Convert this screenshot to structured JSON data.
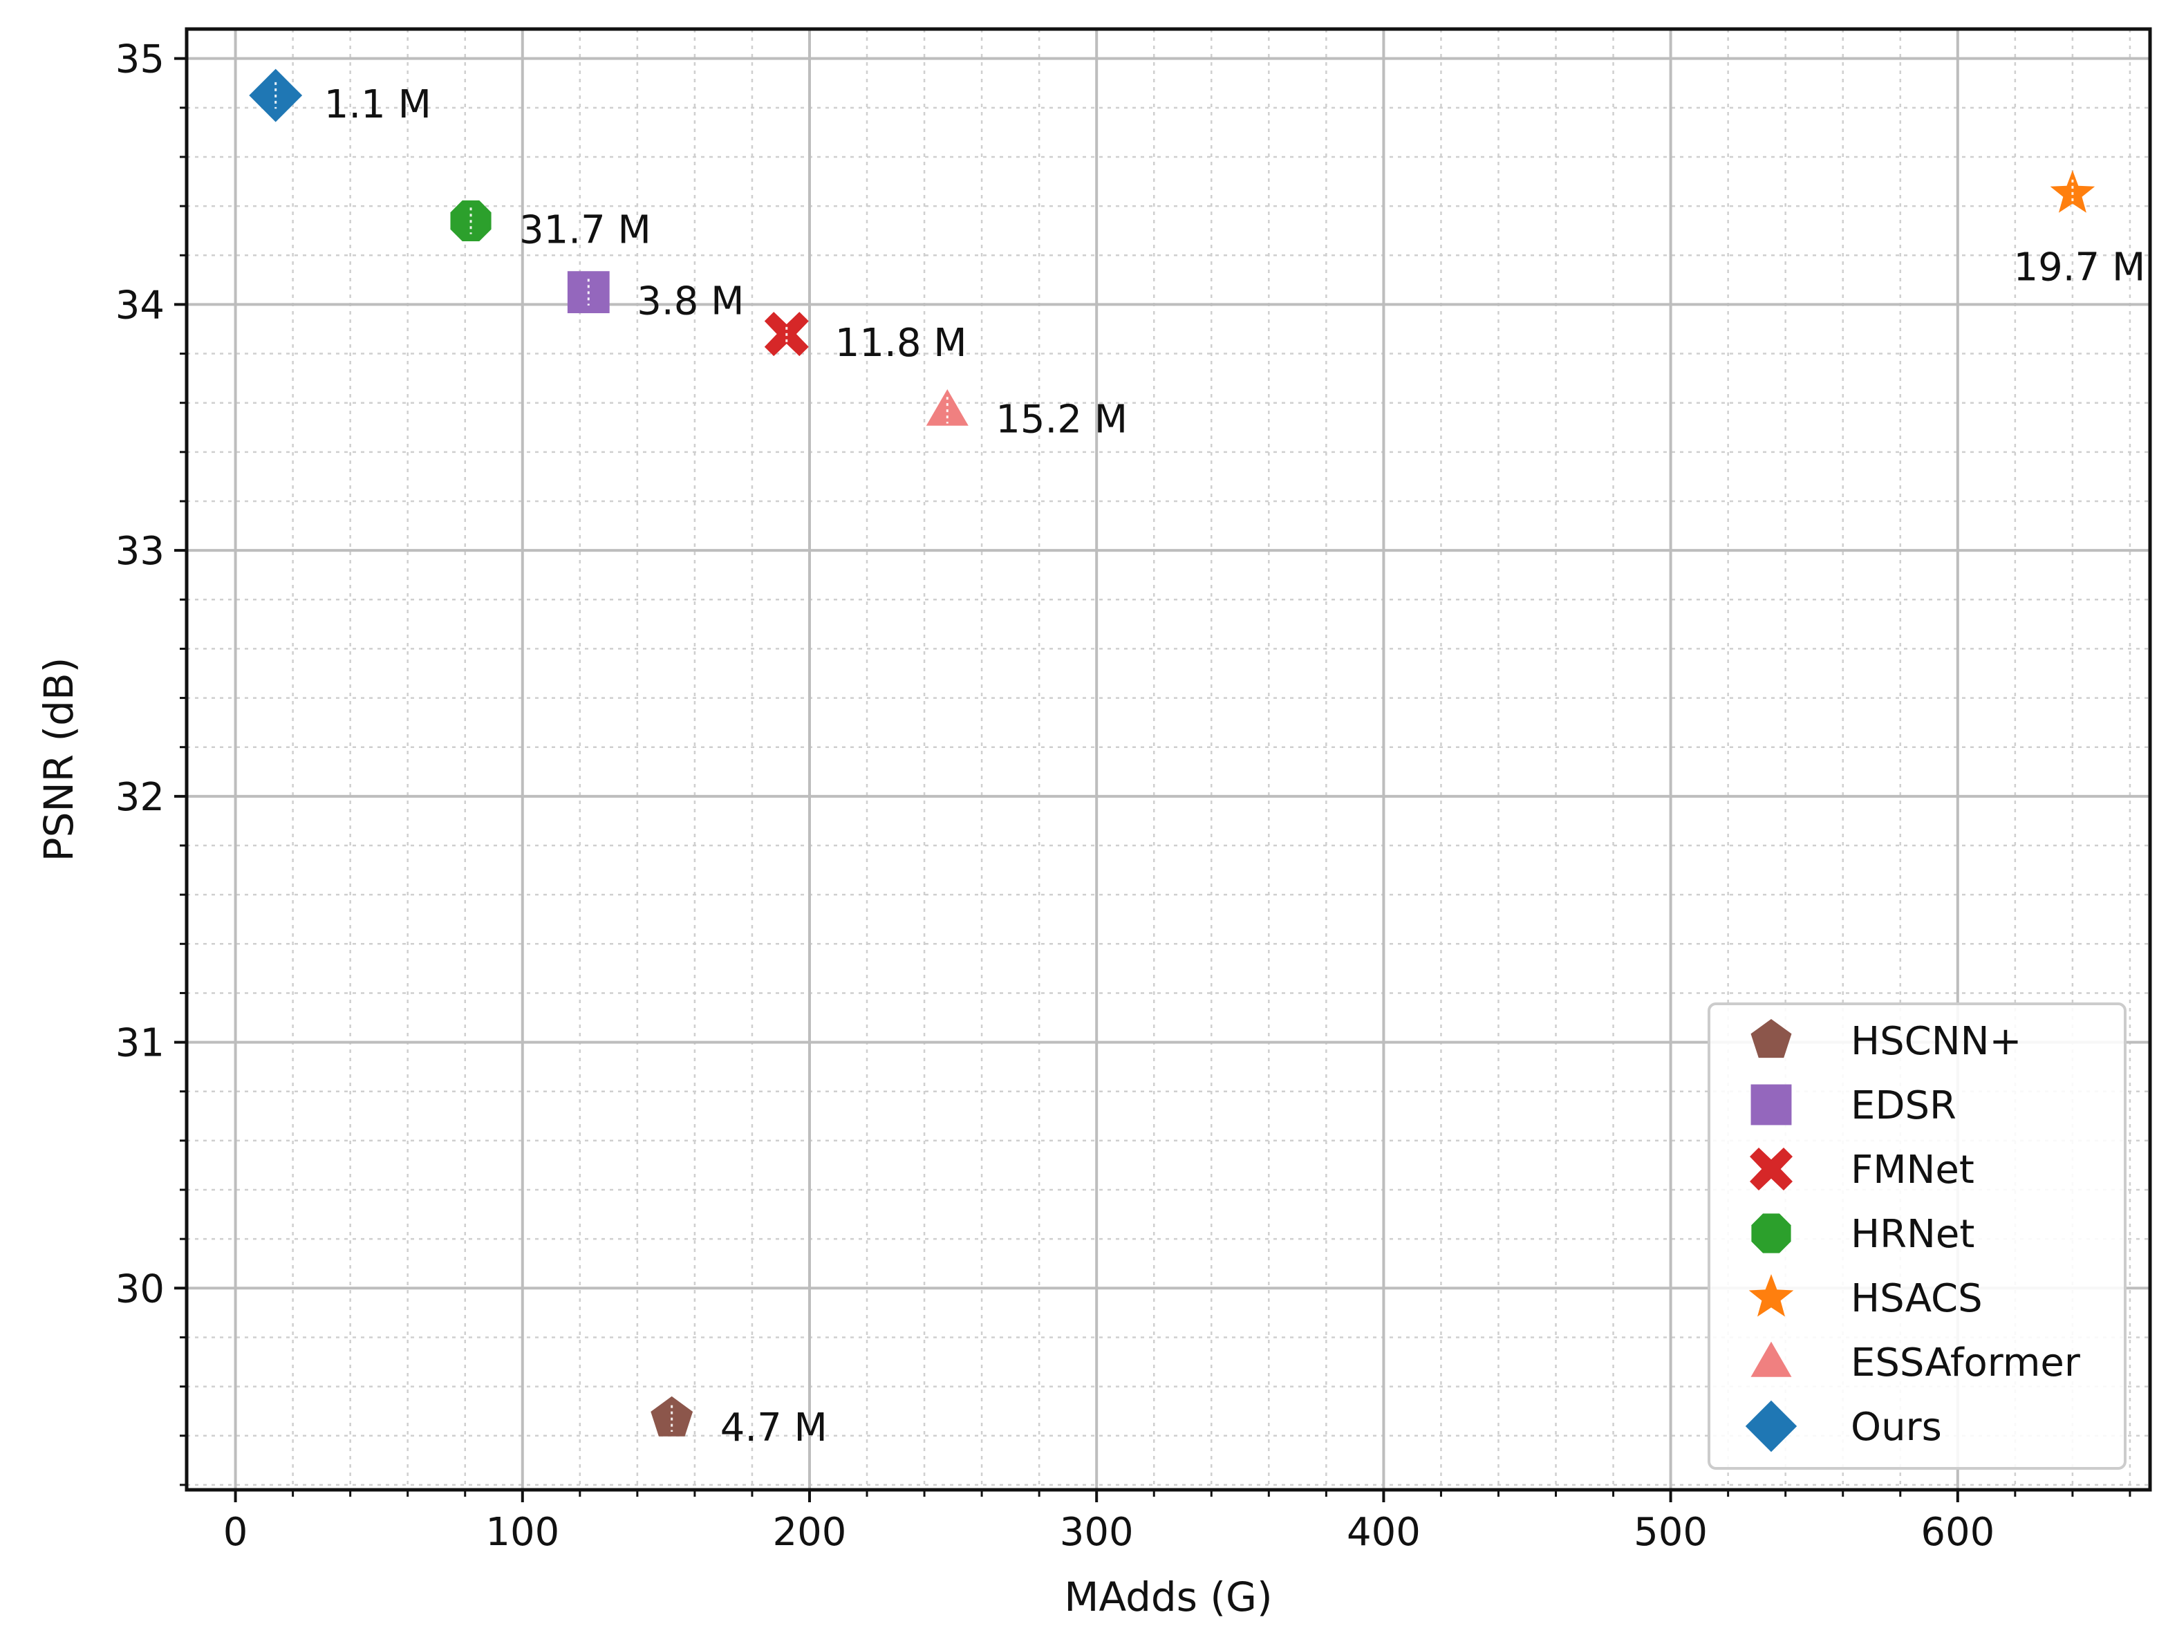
{
  "chart_data": {
    "type": "scatter",
    "xlabel": "MAdds (G)",
    "ylabel": "PSNR (dB)",
    "xlim": [
      -17,
      667
    ],
    "ylim": [
      29.18,
      35.12
    ],
    "x_ticks": [
      0,
      100,
      200,
      300,
      400,
      500,
      600
    ],
    "y_ticks": [
      30,
      31,
      32,
      33,
      34,
      35
    ],
    "x_minor_step": 20,
    "y_minor_step": 0.2,
    "grid": true,
    "legend_position": "bottom-right",
    "series": [
      {
        "name": "HSCNN+",
        "marker": "pentagon",
        "color": "#8c564b",
        "x": 152,
        "y": 29.47,
        "label": "4.7 M",
        "label_position": "right"
      },
      {
        "name": "EDSR",
        "marker": "square",
        "color": "#9467bd",
        "x": 123,
        "y": 34.05,
        "label": "3.8 M",
        "label_position": "right"
      },
      {
        "name": "FMNet",
        "marker": "x",
        "color": "#d62728",
        "x": 192,
        "y": 33.88,
        "label": "11.8 M",
        "label_position": "right"
      },
      {
        "name": "HRNet",
        "marker": "octagon",
        "color": "#2ca02c",
        "x": 82,
        "y": 34.34,
        "label": "31.7 M",
        "label_position": "right"
      },
      {
        "name": "HSACS",
        "marker": "star",
        "color": "#ff7f0e",
        "x": 640,
        "y": 34.45,
        "label": "19.7 M",
        "label_position": "below"
      },
      {
        "name": "ESSAformer",
        "marker": "triangle",
        "color": "#f08080",
        "x": 248,
        "y": 33.57,
        "label": "15.2 M",
        "label_position": "right"
      },
      {
        "name": "Ours",
        "marker": "diamond",
        "color": "#1f77b4",
        "x": 14,
        "y": 34.85,
        "label": "1.1 M",
        "label_position": "right"
      }
    ]
  }
}
